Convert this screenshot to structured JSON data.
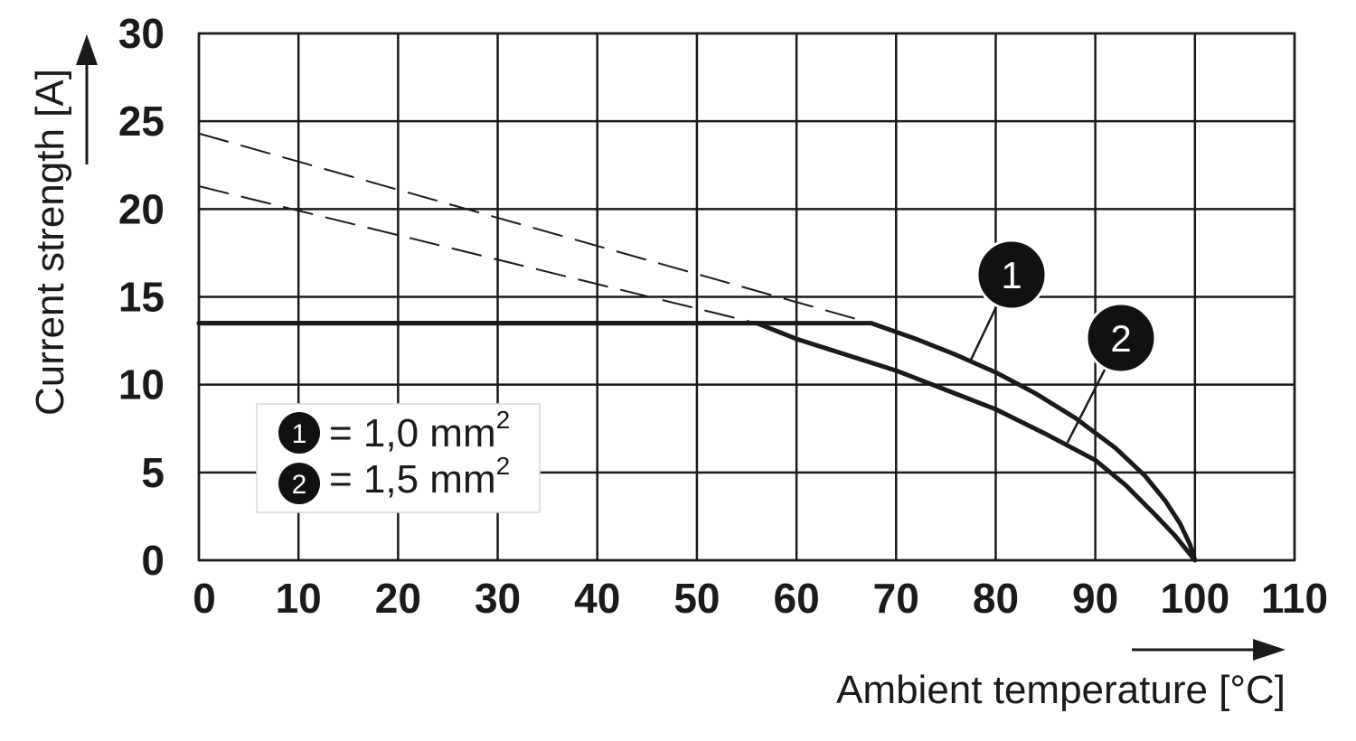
{
  "chart_data": {
    "type": "line",
    "xlabel": "Ambient temperature [°C]",
    "ylabel": "Current strength [A]",
    "xlim": [
      0,
      110
    ],
    "ylim": [
      0,
      30
    ],
    "x_ticks": [
      "0",
      "10",
      "20",
      "30",
      "40",
      "50",
      "60",
      "70",
      "80",
      "90",
      "100",
      "110"
    ],
    "y_ticks": [
      "0",
      "5",
      "10",
      "15",
      "20",
      "25",
      "30"
    ],
    "grid": true,
    "series": [
      {
        "marker": "1",
        "legend_label": "= 1,0 mm",
        "legend_sup": "2",
        "points": [
          [
            0,
            13.5
          ],
          [
            67.5,
            13.5
          ],
          [
            72,
            12.6
          ],
          [
            76,
            11.7
          ],
          [
            80,
            10.7
          ],
          [
            84,
            9.5
          ],
          [
            88,
            8.1
          ],
          [
            92,
            6.4
          ],
          [
            95,
            4.8
          ],
          [
            97,
            3.4
          ],
          [
            98.5,
            2.1
          ],
          [
            99.5,
            0.9
          ],
          [
            100,
            0
          ]
        ],
        "extrapolation": [
          [
            0,
            24.3
          ],
          [
            67.5,
            13.5
          ]
        ]
      },
      {
        "marker": "2",
        "legend_label": "= 1,5 mm",
        "legend_sup": "2",
        "points": [
          [
            0,
            13.5
          ],
          [
            56,
            13.5
          ],
          [
            60,
            12.6
          ],
          [
            65,
            11.7
          ],
          [
            70,
            10.8
          ],
          [
            75,
            9.7
          ],
          [
            80,
            8.6
          ],
          [
            85,
            7.2
          ],
          [
            90,
            5.7
          ],
          [
            93,
            4.3
          ],
          [
            96,
            2.6
          ],
          [
            98,
            1.4
          ],
          [
            100,
            0
          ]
        ],
        "extrapolation": [
          [
            0,
            21.3
          ],
          [
            56,
            13.5
          ]
        ]
      }
    ]
  }
}
